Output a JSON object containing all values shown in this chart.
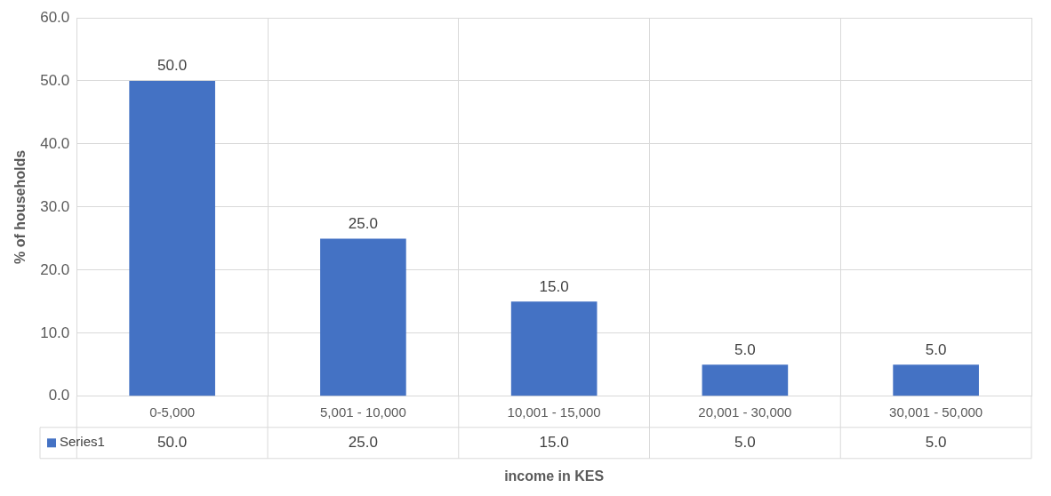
{
  "chart_data": {
    "type": "bar",
    "xlabel": "income in KES",
    "ylabel": "% of households",
    "categories": [
      "0-5,000",
      "5,001 - 10,000",
      "10,001 - 15,000",
      "20,001 - 30,000",
      "30,001 - 50,000"
    ],
    "series": [
      {
        "name": "Series1",
        "color": "#4472c4",
        "values": [
          50,
          25,
          15,
          5,
          5
        ],
        "value_labels": [
          "50.0",
          "25.0",
          "15.0",
          "5.0",
          "5.0"
        ]
      }
    ],
    "ylim": [
      0,
      60
    ],
    "yticks": [
      {
        "value": 0,
        "label": "0.0"
      },
      {
        "value": 10,
        "label": "10.0"
      },
      {
        "value": 20,
        "label": "20.0"
      },
      {
        "value": 30,
        "label": "30.0"
      },
      {
        "value": 40,
        "label": "40.0"
      },
      {
        "value": 50,
        "label": "50.0"
      },
      {
        "value": 60,
        "label": "60.0"
      }
    ],
    "grid": true,
    "legend": "bottom left"
  }
}
